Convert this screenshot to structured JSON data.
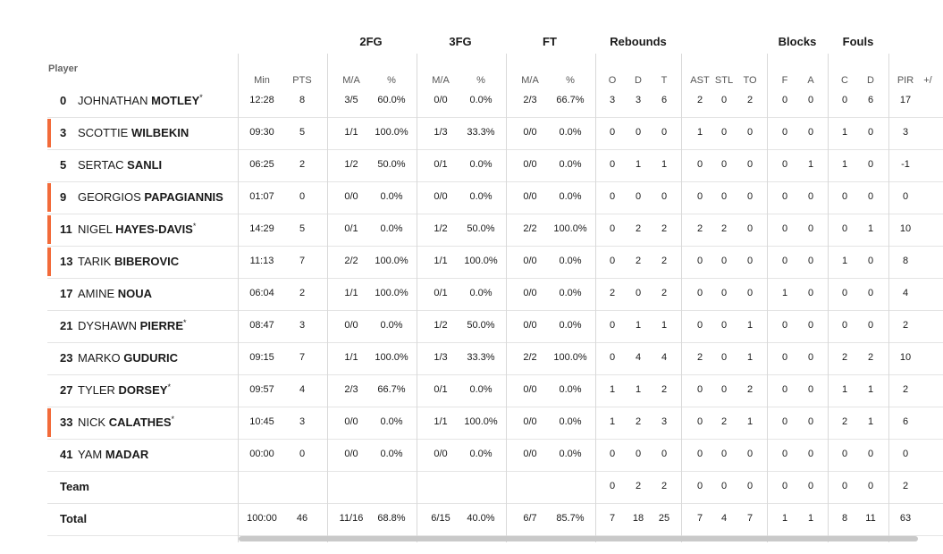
{
  "groups": [
    "2FG",
    "3FG",
    "FT",
    "Rebounds",
    "Blocks",
    "Fouls"
  ],
  "player_header": "Player",
  "columns": [
    "Min",
    "PTS",
    "M/A",
    "%",
    "M/A",
    "%",
    "M/A",
    "%",
    "O",
    "D",
    "T",
    "AST",
    "STL",
    "TO",
    "F",
    "A",
    "C",
    "D",
    "PIR",
    "+/"
  ],
  "players": [
    {
      "num": "0",
      "first": "JOHNATHAN",
      "last": "MOTLEY",
      "star": true,
      "accent": false,
      "stats": [
        "12:28",
        "8",
        "3/5",
        "60.0%",
        "0/0",
        "0.0%",
        "2/3",
        "66.7%",
        "3",
        "3",
        "6",
        "2",
        "0",
        "2",
        "0",
        "0",
        "0",
        "6",
        "17",
        ""
      ]
    },
    {
      "num": "3",
      "first": "SCOTTIE",
      "last": "WILBEKIN",
      "star": false,
      "accent": true,
      "stats": [
        "09:30",
        "5",
        "1/1",
        "100.0%",
        "1/3",
        "33.3%",
        "0/0",
        "0.0%",
        "0",
        "0",
        "0",
        "1",
        "0",
        "0",
        "0",
        "0",
        "1",
        "0",
        "3",
        ""
      ]
    },
    {
      "num": "5",
      "first": "SERTAC",
      "last": "SANLI",
      "star": false,
      "accent": false,
      "stats": [
        "06:25",
        "2",
        "1/2",
        "50.0%",
        "0/1",
        "0.0%",
        "0/0",
        "0.0%",
        "0",
        "1",
        "1",
        "0",
        "0",
        "0",
        "0",
        "1",
        "1",
        "0",
        "-1",
        ""
      ]
    },
    {
      "num": "9",
      "first": "GEORGIOS",
      "last": "PAPAGIANNIS",
      "star": false,
      "accent": true,
      "stats": [
        "01:07",
        "0",
        "0/0",
        "0.0%",
        "0/0",
        "0.0%",
        "0/0",
        "0.0%",
        "0",
        "0",
        "0",
        "0",
        "0",
        "0",
        "0",
        "0",
        "0",
        "0",
        "0",
        ""
      ]
    },
    {
      "num": "11",
      "first": "NIGEL",
      "last": "HAYES-DAVIS",
      "star": true,
      "accent": true,
      "stats": [
        "14:29",
        "5",
        "0/1",
        "0.0%",
        "1/2",
        "50.0%",
        "2/2",
        "100.0%",
        "0",
        "2",
        "2",
        "2",
        "2",
        "0",
        "0",
        "0",
        "0",
        "1",
        "10",
        ""
      ]
    },
    {
      "num": "13",
      "first": "TARIK",
      "last": "BIBEROVIC",
      "star": false,
      "accent": true,
      "stats": [
        "11:13",
        "7",
        "2/2",
        "100.0%",
        "1/1",
        "100.0%",
        "0/0",
        "0.0%",
        "0",
        "2",
        "2",
        "0",
        "0",
        "0",
        "0",
        "0",
        "1",
        "0",
        "8",
        ""
      ]
    },
    {
      "num": "17",
      "first": "AMINE",
      "last": "NOUA",
      "star": false,
      "accent": false,
      "stats": [
        "06:04",
        "2",
        "1/1",
        "100.0%",
        "0/1",
        "0.0%",
        "0/0",
        "0.0%",
        "2",
        "0",
        "2",
        "0",
        "0",
        "0",
        "1",
        "0",
        "0",
        "0",
        "4",
        ""
      ]
    },
    {
      "num": "21",
      "first": "DYSHAWN",
      "last": "PIERRE",
      "star": true,
      "accent": false,
      "stats": [
        "08:47",
        "3",
        "0/0",
        "0.0%",
        "1/2",
        "50.0%",
        "0/0",
        "0.0%",
        "0",
        "1",
        "1",
        "0",
        "0",
        "1",
        "0",
        "0",
        "0",
        "0",
        "2",
        ""
      ]
    },
    {
      "num": "23",
      "first": "MARKO",
      "last": "GUDURIC",
      "star": false,
      "accent": false,
      "stats": [
        "09:15",
        "7",
        "1/1",
        "100.0%",
        "1/3",
        "33.3%",
        "2/2",
        "100.0%",
        "0",
        "4",
        "4",
        "2",
        "0",
        "1",
        "0",
        "0",
        "2",
        "2",
        "10",
        ""
      ]
    },
    {
      "num": "27",
      "first": "TYLER",
      "last": "DORSEY",
      "star": true,
      "accent": false,
      "stats": [
        "09:57",
        "4",
        "2/3",
        "66.7%",
        "0/1",
        "0.0%",
        "0/0",
        "0.0%",
        "1",
        "1",
        "2",
        "0",
        "0",
        "2",
        "0",
        "0",
        "1",
        "1",
        "2",
        ""
      ]
    },
    {
      "num": "33",
      "first": "NICK",
      "last": "CALATHES",
      "star": true,
      "accent": true,
      "stats": [
        "10:45",
        "3",
        "0/0",
        "0.0%",
        "1/1",
        "100.0%",
        "0/0",
        "0.0%",
        "1",
        "2",
        "3",
        "0",
        "2",
        "1",
        "0",
        "0",
        "2",
        "1",
        "6",
        ""
      ]
    },
    {
      "num": "41",
      "first": "YAM",
      "last": "MADAR",
      "star": false,
      "accent": false,
      "stats": [
        "00:00",
        "0",
        "0/0",
        "0.0%",
        "0/0",
        "0.0%",
        "0/0",
        "0.0%",
        "0",
        "0",
        "0",
        "0",
        "0",
        "0",
        "0",
        "0",
        "0",
        "0",
        "0",
        ""
      ]
    }
  ],
  "team_row": {
    "label": "Team",
    "stats": [
      "",
      "",
      "",
      "",
      "",
      "",
      "",
      "",
      "0",
      "2",
      "2",
      "0",
      "0",
      "0",
      "0",
      "0",
      "0",
      "0",
      "2",
      ""
    ]
  },
  "total_row": {
    "label": "Total",
    "stats": [
      "100:00",
      "46",
      "11/16",
      "68.8%",
      "6/15",
      "40.0%",
      "6/7",
      "85.7%",
      "7",
      "18",
      "25",
      "7",
      "4",
      "7",
      "1",
      "1",
      "8",
      "11",
      "63",
      ""
    ]
  },
  "star_glyph": "*",
  "colors": {
    "accent": "#f26b3a",
    "divider": "#d9d9d9"
  }
}
